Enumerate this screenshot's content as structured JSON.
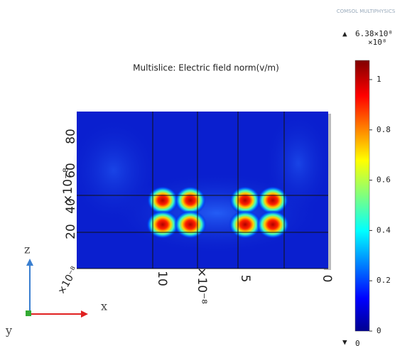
{
  "logo": "COMSOL MULTIPHYSICS",
  "title": "Multislice: Electric field norm(v/m)",
  "colorbar": {
    "max_label": "6.38×10⁸",
    "scale_label": "×10⁸",
    "ticks": [
      1,
      0.8,
      0.6,
      0.4,
      0.2,
      0
    ],
    "min_label": "0"
  },
  "plot": {
    "vertical_ticks": [
      80,
      60,
      40,
      20
    ],
    "vertical_scale": "×10⁻⁸",
    "horizontal_ticks": [
      10,
      5,
      0
    ],
    "horizontal_scale": "×10⁻⁸",
    "corner_scale": "×10⁻⁸"
  },
  "triad": {
    "z": "z",
    "x": "x",
    "y": "y"
  }
}
